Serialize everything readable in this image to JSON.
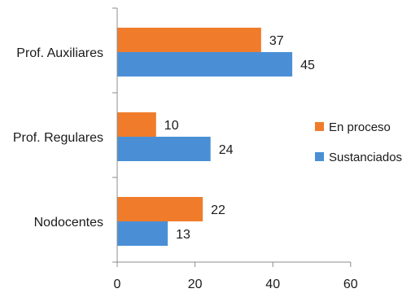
{
  "chart_data": {
    "type": "bar",
    "orientation": "horizontal",
    "categories": [
      "Prof. Auxiliares",
      "Prof. Regulares",
      "Nodocentes"
    ],
    "series": [
      {
        "name": "En proceso",
        "values": [
          37,
          10,
          22
        ],
        "color": "#f07c2b"
      },
      {
        "name": "Sustanciados",
        "values": [
          45,
          24,
          13
        ],
        "color": "#4a8fd6"
      }
    ],
    "xlim": [
      0,
      60
    ],
    "xticks": [
      0,
      20,
      40,
      60
    ],
    "title": "",
    "xlabel": "",
    "ylabel": "",
    "grid": false,
    "legend_position": "right"
  }
}
